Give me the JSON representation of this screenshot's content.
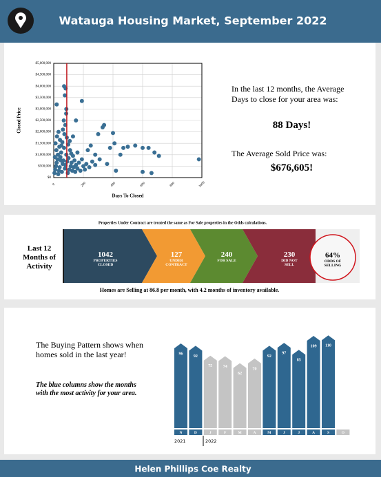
{
  "header": {
    "title": "Watauga Housing Market, September 2022"
  },
  "chart_data": [
    {
      "type": "scatter",
      "x_label": "Days To Closed",
      "y_label": "Closed Price",
      "color": "#3a6f94",
      "grid": true,
      "marker_line_x": 88,
      "marker_line_color": "#c0171d",
      "xlim": [
        0,
        1000
      ],
      "xticks": [
        0,
        200,
        400,
        600,
        800,
        1000
      ],
      "ylim": [
        0,
        5000000
      ],
      "yticks": [
        {
          "value": 0,
          "label": "$0"
        },
        {
          "value": 500000,
          "label": "$500,000"
        },
        {
          "value": 1000000,
          "label": "$1,000,000"
        },
        {
          "value": 1500000,
          "label": "$1,500,000"
        },
        {
          "value": 2000000,
          "label": "$2,000,000"
        },
        {
          "value": 2500000,
          "label": "$2,500,000"
        },
        {
          "value": 3000000,
          "label": "$3,000,000"
        },
        {
          "value": 3500000,
          "label": "$3,500,000"
        },
        {
          "value": 4000000,
          "label": "$4,000,000"
        },
        {
          "value": 4500000,
          "label": "$4,500,000"
        },
        {
          "value": 5000000,
          "label": "$5,000,000"
        }
      ],
      "x": [
        5,
        10,
        15,
        20,
        25,
        30,
        35,
        40,
        45,
        50,
        55,
        60,
        65,
        70,
        75,
        80,
        85,
        90,
        95,
        100,
        105,
        110,
        115,
        120,
        125,
        130,
        135,
        140,
        145,
        150,
        160,
        170,
        180,
        190,
        200,
        210,
        220,
        240,
        260,
        280,
        12,
        22,
        32,
        42,
        52,
        62,
        72,
        18,
        28,
        48,
        58,
        68,
        88,
        98,
        108,
        118,
        8,
        38,
        78,
        84,
        70,
        80,
        75,
        20,
        85,
        190,
        340,
        330,
        400,
        300,
        410,
        380,
        450,
        470,
        500,
        550,
        600,
        640,
        680,
        710,
        980,
        420,
        600,
        660,
        230,
        250,
        280,
        150,
        130,
        310,
        360,
        160
      ],
      "y": [
        200000,
        350000,
        500000,
        650000,
        800000,
        150000,
        300000,
        450000,
        900000,
        1100000,
        250000,
        600000,
        750000,
        1300000,
        400000,
        550000,
        1000000,
        700000,
        200000,
        850000,
        350000,
        1200000,
        500000,
        650000,
        300000,
        950000,
        450000,
        750000,
        250000,
        550000,
        400000,
        650000,
        300000,
        800000,
        500000,
        350000,
        600000,
        450000,
        700000,
        550000,
        1500000,
        1800000,
        2000000,
        1650000,
        1400000,
        2100000,
        1900000,
        1200000,
        1000000,
        750000,
        1550000,
        2500000,
        1750000,
        1450000,
        1600000,
        1050000,
        900000,
        1350000,
        2300000,
        2800000,
        4000000,
        3900000,
        3600000,
        3200000,
        3000000,
        3350000,
        2300000,
        2200000,
        1950000,
        1900000,
        1500000,
        1300000,
        1000000,
        1300000,
        1350000,
        1400000,
        1300000,
        1300000,
        1100000,
        950000,
        800000,
        300000,
        250000,
        200000,
        1200000,
        1400000,
        1000000,
        2500000,
        1800000,
        800000,
        600000,
        1100000
      ]
    },
    {
      "type": "bar",
      "categories": [
        "N",
        "D",
        "J",
        "F",
        "M",
        "A",
        "M",
        "J",
        "J",
        "A",
        "S",
        "O"
      ],
      "values": [
        96,
        92,
        75,
        74,
        62,
        70,
        92,
        97,
        85,
        109,
        110,
        null
      ],
      "colors": [
        "#2f6790",
        "#2f6790",
        "#c4c4c4",
        "#c4c4c4",
        "#c4c4c4",
        "#c4c4c4",
        "#2f6790",
        "#2f6790",
        "#2f6790",
        "#2f6790",
        "#2f6790",
        "#c4c4c4"
      ],
      "ylim": [
        -50,
        115
      ],
      "years": [
        "2021",
        "2022"
      ]
    }
  ],
  "summary": {
    "days_text": "In the last 12 months, the Average Days to close for your area was:",
    "days_value": "88 Days!",
    "price_text": "The Average Sold Price was:",
    "price_value": "$676,605!"
  },
  "activity": {
    "note": "Properties Under Contract are treated the same as For Sale properties in the Odds calculations.",
    "label": "Last 12 Months of Activity",
    "steps": [
      {
        "value": "1042",
        "label": "PROPERTIES CLOSED",
        "color": "#2d4a60"
      },
      {
        "value": "127",
        "label": "UNDER CONTRACT",
        "color": "#f29a33"
      },
      {
        "value": "240",
        "label": "FOR SALE",
        "color": "#5c8a30"
      },
      {
        "value": "230",
        "label": "DID NOT SELL",
        "color": "#8a2d3b"
      }
    ],
    "odds": {
      "value": "64%",
      "label": "ODDS OF SELLING"
    },
    "footer": "Homes are Selling at 86.8 per month, with 4.2 months of inventory available."
  },
  "buying": {
    "text": "The Buying Pattern shows when homes sold in the last year!",
    "note": "The blue columns show the months with the most activity for your area."
  },
  "footer": {
    "title": "Helen Phillips Coe Realty"
  }
}
